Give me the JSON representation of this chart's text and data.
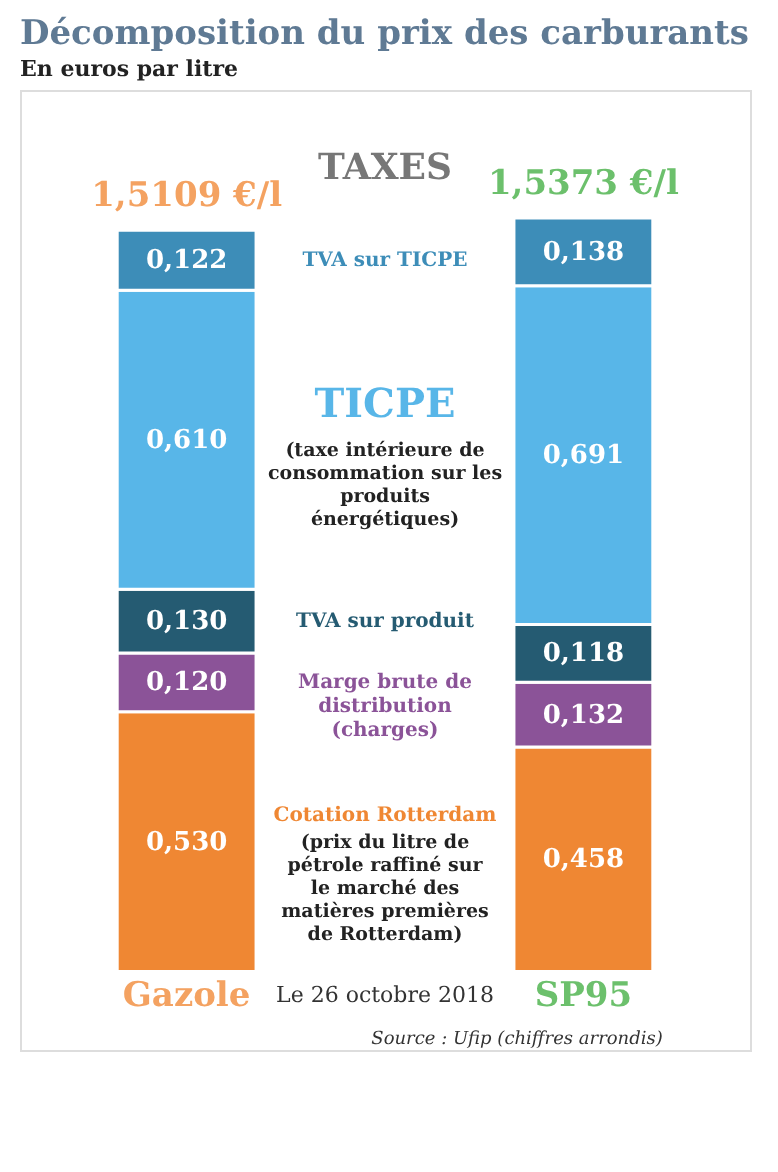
{
  "chart_data": {
    "type": "bar",
    "stacked": true,
    "title": "Décomposition du prix des carburants",
    "subtitle": "En euros par litre",
    "categories": [
      "Gazole",
      "SP95"
    ],
    "series": [
      {
        "name": "Cotation Rotterdam",
        "color": "#ef8733",
        "values": [
          0.53,
          0.458
        ],
        "value_labels": [
          "0,530",
          "0,458"
        ]
      },
      {
        "name": "Marge brute de distribution (charges)",
        "color": "#8b5398",
        "values": [
          0.12,
          0.132
        ],
        "value_labels": [
          "0,120",
          "0,132"
        ]
      },
      {
        "name": "TVA sur produit",
        "color": "#255b72",
        "values": [
          0.13,
          0.118
        ],
        "value_labels": [
          "0,130",
          "0,118"
        ]
      },
      {
        "name": "TICPE",
        "color": "#58b6e8",
        "values": [
          0.61,
          0.691
        ],
        "value_labels": [
          "0,610",
          "0,691"
        ]
      },
      {
        "name": "TVA sur TICPE",
        "color": "#3d8db8",
        "values": [
          0.122,
          0.138
        ],
        "value_labels": [
          "0,122",
          "0,138"
        ]
      }
    ],
    "totals": [
      "1,5109 €/l",
      "1,5373 €/l"
    ],
    "annotations": [
      "TAXES",
      "(taxe intérieure de consommation sur les produits énergétiques)",
      "(prix du litre de pétrole raffiné sur le marché des matières premières de Rotterdam)",
      "Le 26 octobre 2018",
      "Source : Ufip (chiffres arrondis)"
    ]
  }
}
